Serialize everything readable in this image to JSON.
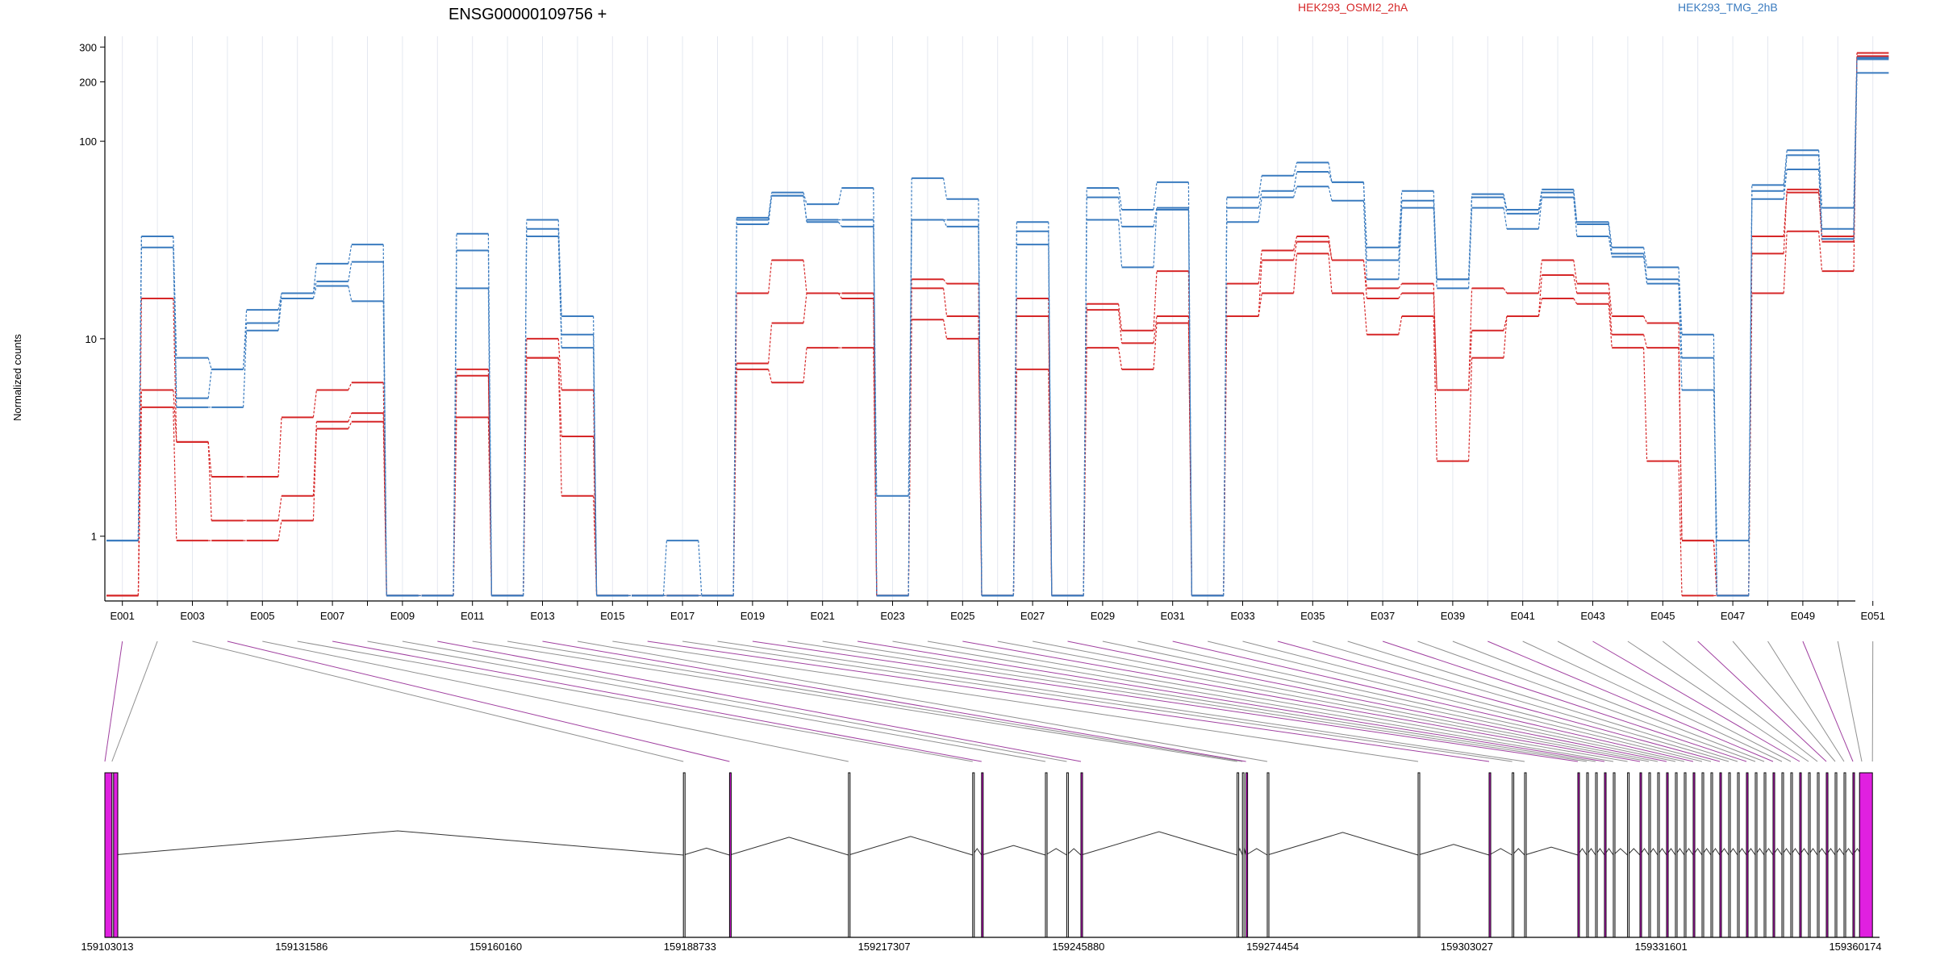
{
  "chart_data": {
    "type": "line",
    "title": "ENSG00000109756 +",
    "ylabel": "Normalized counts",
    "y_scale": "log",
    "ylim": [
      0.47,
      340
    ],
    "y_ticks": [
      1,
      10,
      100,
      200,
      300
    ],
    "grid": "vertical",
    "legend": "top",
    "colors": {
      "HEK293_OSMI2_2hA": "#d62728",
      "HEK293_TMG_2hB": "#3a7bbf"
    },
    "categories": [
      "E001",
      "E002",
      "E003",
      "E004",
      "E005",
      "E006",
      "E007",
      "E008",
      "E009",
      "E010",
      "E011",
      "E012",
      "E013",
      "E014",
      "E015",
      "E016",
      "E017",
      "E018",
      "E019",
      "E020",
      "E021",
      "E022",
      "E023",
      "E024",
      "E025",
      "E026",
      "E027",
      "E028",
      "E029",
      "E030",
      "E031",
      "E032",
      "E033",
      "E034",
      "E035",
      "E036",
      "E037",
      "E038",
      "E039",
      "E040",
      "E041",
      "E042",
      "E043",
      "E044",
      "E045",
      "E046",
      "E047",
      "E048",
      "E049",
      "E050",
      "E051"
    ],
    "x_tick_labels": [
      "E001",
      "E003",
      "E005",
      "E007",
      "E009",
      "E011",
      "E013",
      "E015",
      "E017",
      "E019",
      "E021",
      "E023",
      "E025",
      "E027",
      "E029",
      "E031",
      "E033",
      "E035",
      "E037",
      "E039",
      "E041",
      "E043",
      "E045",
      "E047",
      "E049",
      "E051"
    ],
    "series": [
      {
        "name": "HEK293_OSMI2_2hA",
        "values": [
          0.5,
          16,
          3,
          2,
          2,
          4,
          5.5,
          6,
          0.5,
          0.5,
          7,
          0.5,
          10,
          5.5,
          0.5,
          0.5,
          0.5,
          0.5,
          17,
          25,
          17,
          16,
          0.5,
          20,
          19,
          0.5,
          16,
          0.5,
          15,
          11,
          22,
          0.5,
          19,
          28,
          33,
          25,
          18,
          19,
          5.5,
          18,
          17,
          25,
          19,
          13,
          12,
          0.95,
          0.5,
          33,
          55,
          33,
          280
        ]
      },
      {
        "name": "HEK293_OSMI2_2hA",
        "values": [
          0.5,
          5.5,
          3,
          1.2,
          1.2,
          1.6,
          3.8,
          4.2,
          0.5,
          0.5,
          6.5,
          0.5,
          8,
          3.2,
          0.5,
          0.5,
          0.5,
          0.5,
          7.5,
          12,
          17,
          17,
          0.5,
          18,
          13,
          0.5,
          13,
          0.5,
          14,
          9.5,
          13,
          0.5,
          13,
          25,
          31,
          25,
          16,
          17,
          5.5,
          11,
          13,
          21,
          17,
          10.5,
          9,
          0.95,
          0.5,
          27,
          57,
          31,
          270
        ]
      },
      {
        "name": "HEK293_OSMI2_2hA",
        "values": [
          0.5,
          4.5,
          0.95,
          0.95,
          0.95,
          1.2,
          3.5,
          3.8,
          0.5,
          0.5,
          4,
          0.5,
          8,
          1.6,
          0.5,
          0.5,
          0.5,
          0.5,
          7,
          6,
          9,
          9,
          0.5,
          12.5,
          10,
          0.5,
          7,
          0.5,
          9,
          7,
          12,
          0.5,
          13,
          17,
          27,
          17,
          10.5,
          13,
          2.4,
          8,
          13,
          16,
          15,
          9,
          2.4,
          0.5,
          0.5,
          17,
          35,
          22,
          265
        ]
      },
      {
        "name": "HEK293_TMG_2hB",
        "values": [
          0.95,
          33,
          8,
          7,
          14,
          17,
          24,
          30,
          0.5,
          0.5,
          34,
          0.5,
          40,
          13,
          0.5,
          0.5,
          0.95,
          0.5,
          41,
          55,
          48,
          58,
          0.5,
          65,
          51,
          0.5,
          39,
          0.5,
          58,
          45,
          62,
          0.5,
          52,
          67,
          78,
          62,
          29,
          56,
          20,
          54,
          45,
          57,
          39,
          29,
          23,
          10.5,
          0.5,
          60,
          90,
          46,
          265
        ]
      },
      {
        "name": "HEK293_TMG_2hB",
        "values": [
          0.95,
          33,
          5,
          7,
          12,
          17,
          19.5,
          24.5,
          0.5,
          0.5,
          28,
          0.5,
          36,
          10.5,
          0.5,
          0.5,
          0.5,
          0.5,
          40,
          53,
          40,
          40,
          0.5,
          40,
          40,
          0.5,
          35,
          0.5,
          52,
          37,
          46,
          0.5,
          46,
          56,
          70,
          62,
          25,
          50,
          20,
          52,
          43,
          55,
          38,
          27,
          20,
          8,
          0.5,
          56,
          85,
          36,
          260
        ]
      },
      {
        "name": "HEK293_TMG_2hB",
        "values": [
          0.95,
          29,
          4.5,
          4.5,
          11,
          16,
          18.5,
          15.5,
          0.5,
          0.5,
          18,
          0.5,
          33,
          9,
          0.5,
          0.5,
          0.5,
          0.5,
          38,
          53,
          39,
          37,
          1.6,
          40,
          37,
          0.5,
          30,
          0.5,
          40,
          23,
          45,
          0.5,
          39,
          52,
          59,
          50,
          20,
          46,
          18,
          46,
          36,
          52,
          33,
          26,
          19,
          5.5,
          0.95,
          51,
          72,
          32,
          222
        ]
      }
    ],
    "gene_model": {
      "coordinate_labels": [
        "159103013",
        "159131586",
        "159160160",
        "159188733",
        "159217307",
        "159245880",
        "159274454",
        "159303027",
        "159331601",
        "159360174"
      ]
    }
  }
}
